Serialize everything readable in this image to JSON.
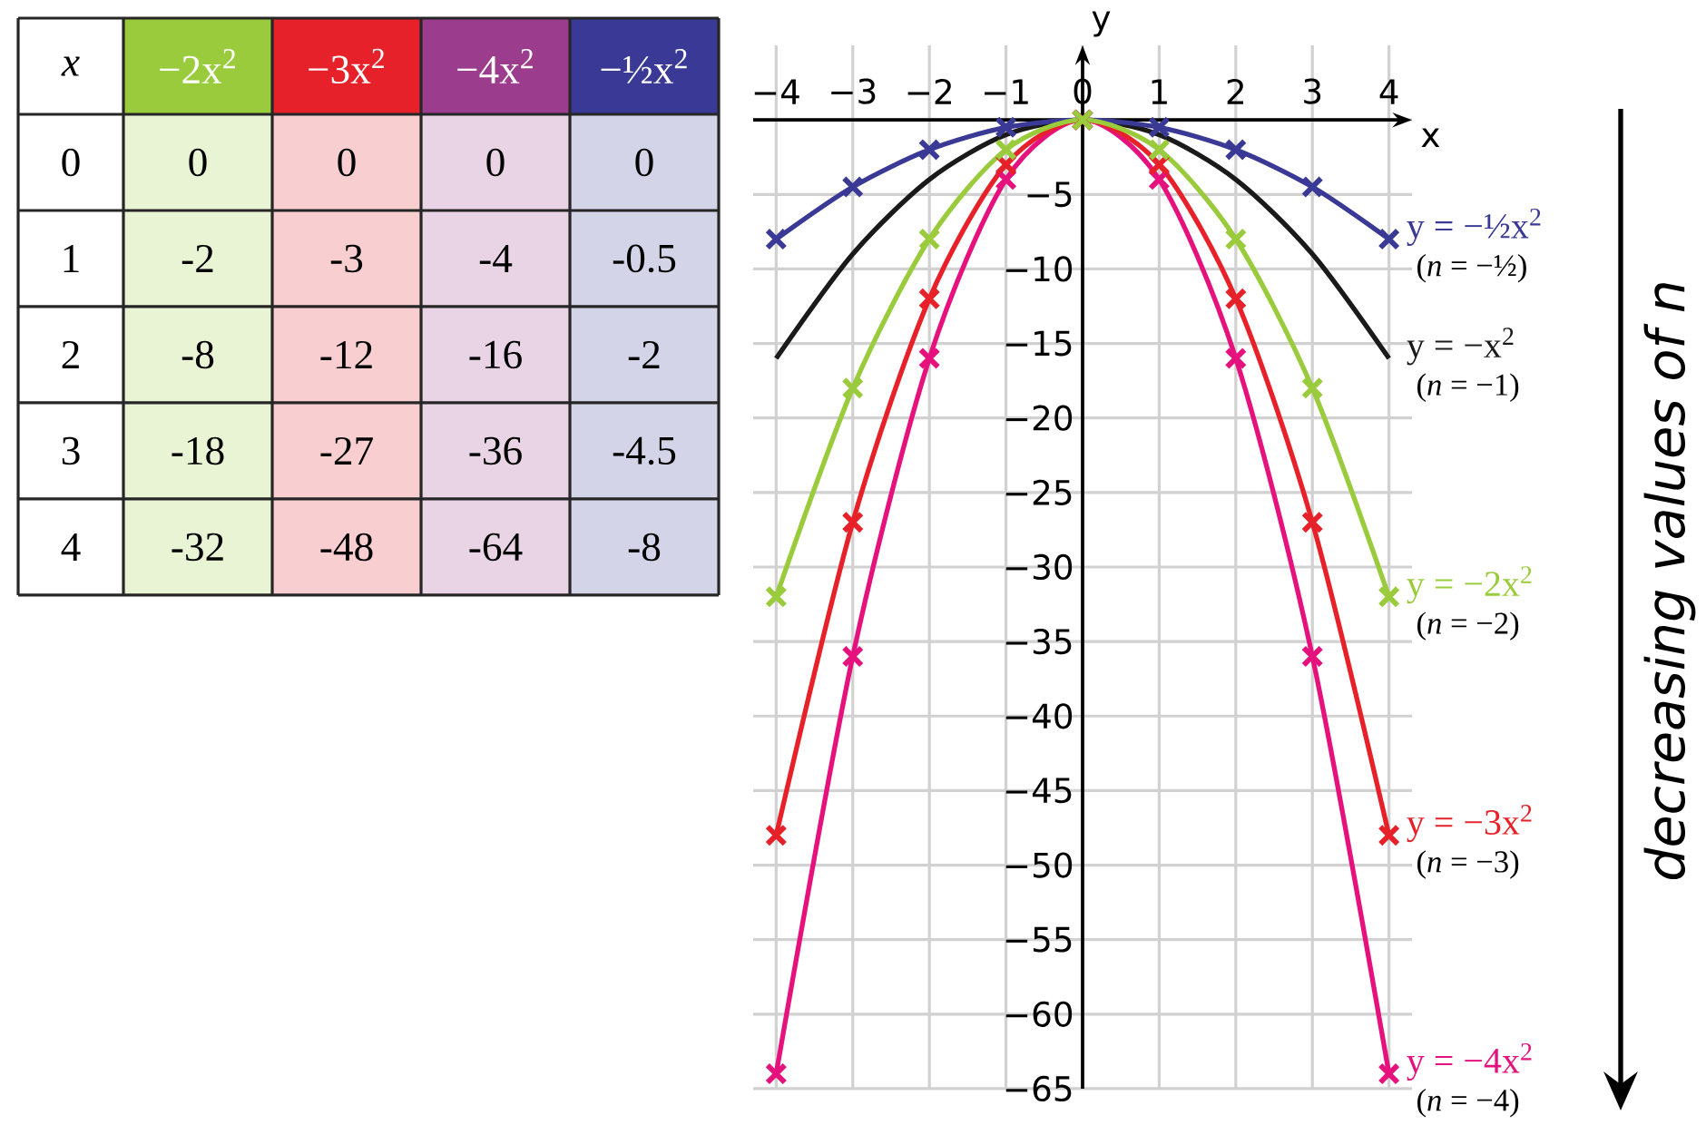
{
  "chart_data": [
    {
      "type": "heatmap",
      "ylabel": "x",
      "data_labels": true,
      "categories": [
        "−2x$^{2}$",
        "−3x$^{2}$",
        "−4x$^{2}$",
        "−½x$^{2}$"
      ],
      "colors": [
        "#9acb3c",
        "#e62129",
        "#9b3d8c",
        "#3a3a96"
      ],
      "y_categories": [
        "0",
        "1",
        "2",
        "3",
        "4"
      ],
      "cells": [
        [
          0,
          0,
          0,
          0
        ],
        [
          -2,
          -3,
          -4,
          -0.5
        ],
        [
          -8,
          -12,
          -16,
          -2
        ],
        [
          -18,
          -27,
          -36,
          -4.5
        ],
        [
          -32,
          -48,
          -64,
          -8
        ]
      ]
    },
    {
      "type": "line",
      "x": [
        -4,
        -3,
        -2,
        -1,
        0,
        1,
        2,
        3,
        4
      ],
      "xlabel": "x",
      "ylabel": "y",
      "xlim": [
        -4.3,
        4.3
      ],
      "ylim": [
        -65,
        5
      ],
      "xticks": [
        {
          "value": -4,
          "label": "−4"
        },
        {
          "value": -3,
          "label": "−3"
        },
        {
          "value": -2,
          "label": "−2"
        },
        {
          "value": -1,
          "label": "−1"
        },
        0,
        1,
        2,
        3,
        4
      ],
      "yticks": [
        {
          "value": -65,
          "label": "−65"
        },
        {
          "value": -60,
          "label": "−60"
        },
        {
          "value": -55,
          "label": "−55"
        },
        {
          "value": -50,
          "label": "−50"
        },
        {
          "value": -45,
          "label": "−45"
        },
        {
          "value": -40,
          "label": "−40"
        },
        {
          "value": -35,
          "label": "−35"
        },
        {
          "value": -30,
          "label": "−30"
        },
        {
          "value": -25,
          "label": "−25"
        },
        {
          "value": -20,
          "label": "−20"
        },
        {
          "value": -15,
          "label": "−15"
        },
        {
          "value": -10,
          "label": "−10"
        },
        {
          "value": -5,
          "label": "−5"
        },
        {
          "value": 0,
          "label": null
        }
      ],
      "grid": true,
      "marker": "cross",
      "series": [
        {
          "name": "y = −2x$^{2}$",
          "color": "#9acb3c",
          "values": [
            -32,
            -18,
            -8,
            -2,
            0,
            -2,
            -8,
            -18,
            -32
          ]
        },
        {
          "name": "y = −3x$^{2}$",
          "color": "#e62129",
          "values": [
            -48,
            -27,
            -12,
            -3,
            0,
            -3,
            -12,
            -27,
            -48
          ]
        },
        {
          "name": "y = −4x$^{2}$",
          "color": "#e5127d",
          "values": [
            -64,
            -36,
            -16,
            -4,
            0,
            -4,
            -16,
            -36,
            -64
          ]
        },
        {
          "name": "y = −½x$^{2}$",
          "color": "#3a3a96",
          "values": [
            -8,
            -4.5,
            -2,
            -0.5,
            0,
            -0.5,
            -2,
            -4.5,
            -8
          ]
        },
        {
          "name": "y = −x$^{2}$",
          "color": "#1a1a1a",
          "marker": "none",
          "values": [
            -16,
            -9,
            -4,
            -1,
            0,
            -1,
            -4,
            -9,
            -16
          ]
        }
      ],
      "annotations": [
        "decreasing values of *n*",
        "(*n* = −2)",
        "(*n* = −3)",
        "(*n* = −4)",
        "(*n* = −½)",
        "(*n* = −1)"
      ]
    }
  ]
}
